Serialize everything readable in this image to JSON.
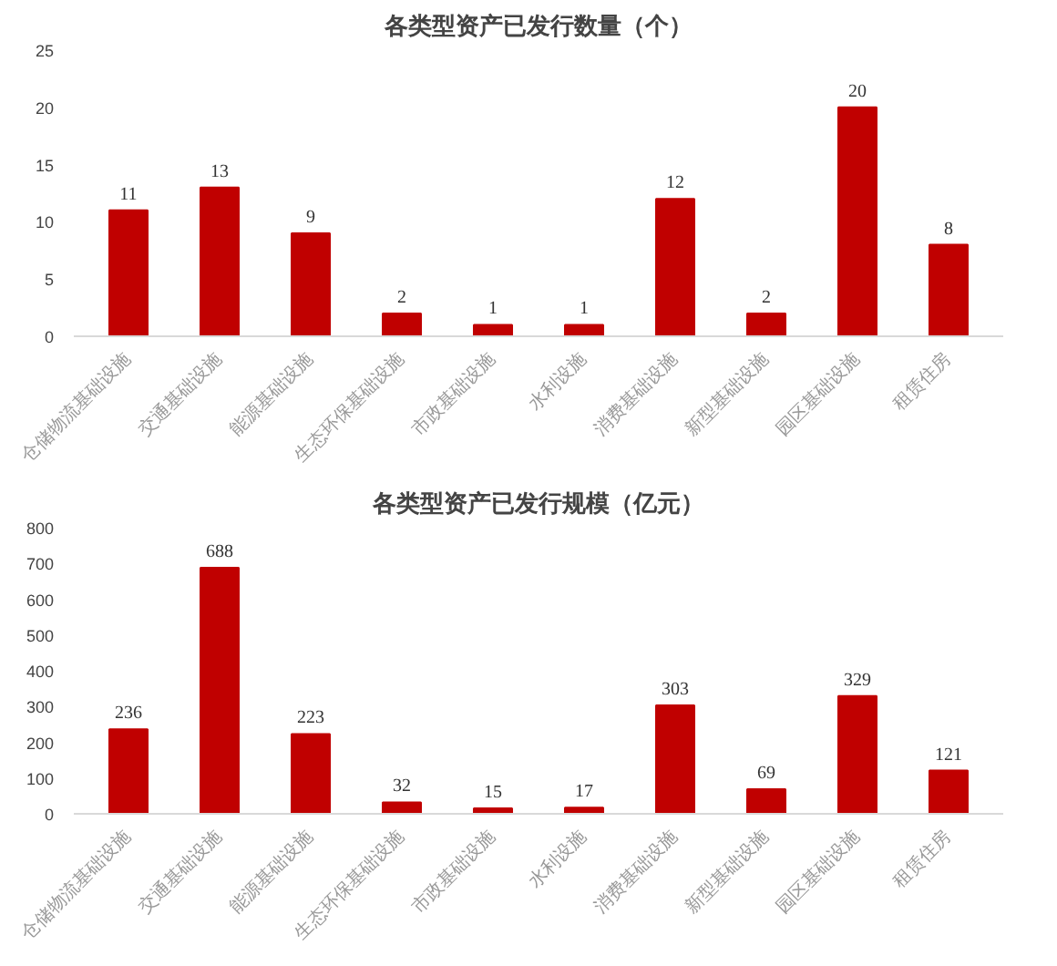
{
  "chart_data": [
    {
      "type": "bar",
      "title": "各类型资产已发行数量（个）",
      "categories": [
        "仓储物流基础设施",
        "交通基础设施",
        "能源基础设施",
        "生态环保基础设施",
        "市政基础设施",
        "水利设施",
        "消费基础设施",
        "新型基础设施",
        "园区基础设施",
        "租赁住房"
      ],
      "values": [
        11,
        13,
        9,
        2,
        1,
        1,
        12,
        2,
        20,
        8
      ],
      "color": "#c00000",
      "ylim": [
        0,
        25
      ],
      "yticks": [
        0,
        5,
        10,
        15,
        20,
        25
      ],
      "grid": false,
      "data_labels": true
    },
    {
      "type": "bar",
      "title": "各类型资产已发行规模（亿元）",
      "categories": [
        "仓储物流基础设施",
        "交通基础设施",
        "能源基础设施",
        "生态环保基础设施",
        "市政基础设施",
        "水利设施",
        "消费基础设施",
        "新型基础设施",
        "园区基础设施",
        "租赁住房"
      ],
      "values": [
        236,
        688,
        223,
        32,
        15,
        17,
        303,
        69,
        329,
        121
      ],
      "color": "#c00000",
      "ylim": [
        0,
        800
      ],
      "yticks": [
        0,
        100,
        200,
        300,
        400,
        500,
        600,
        700,
        800
      ],
      "grid": false,
      "data_labels": true
    }
  ]
}
